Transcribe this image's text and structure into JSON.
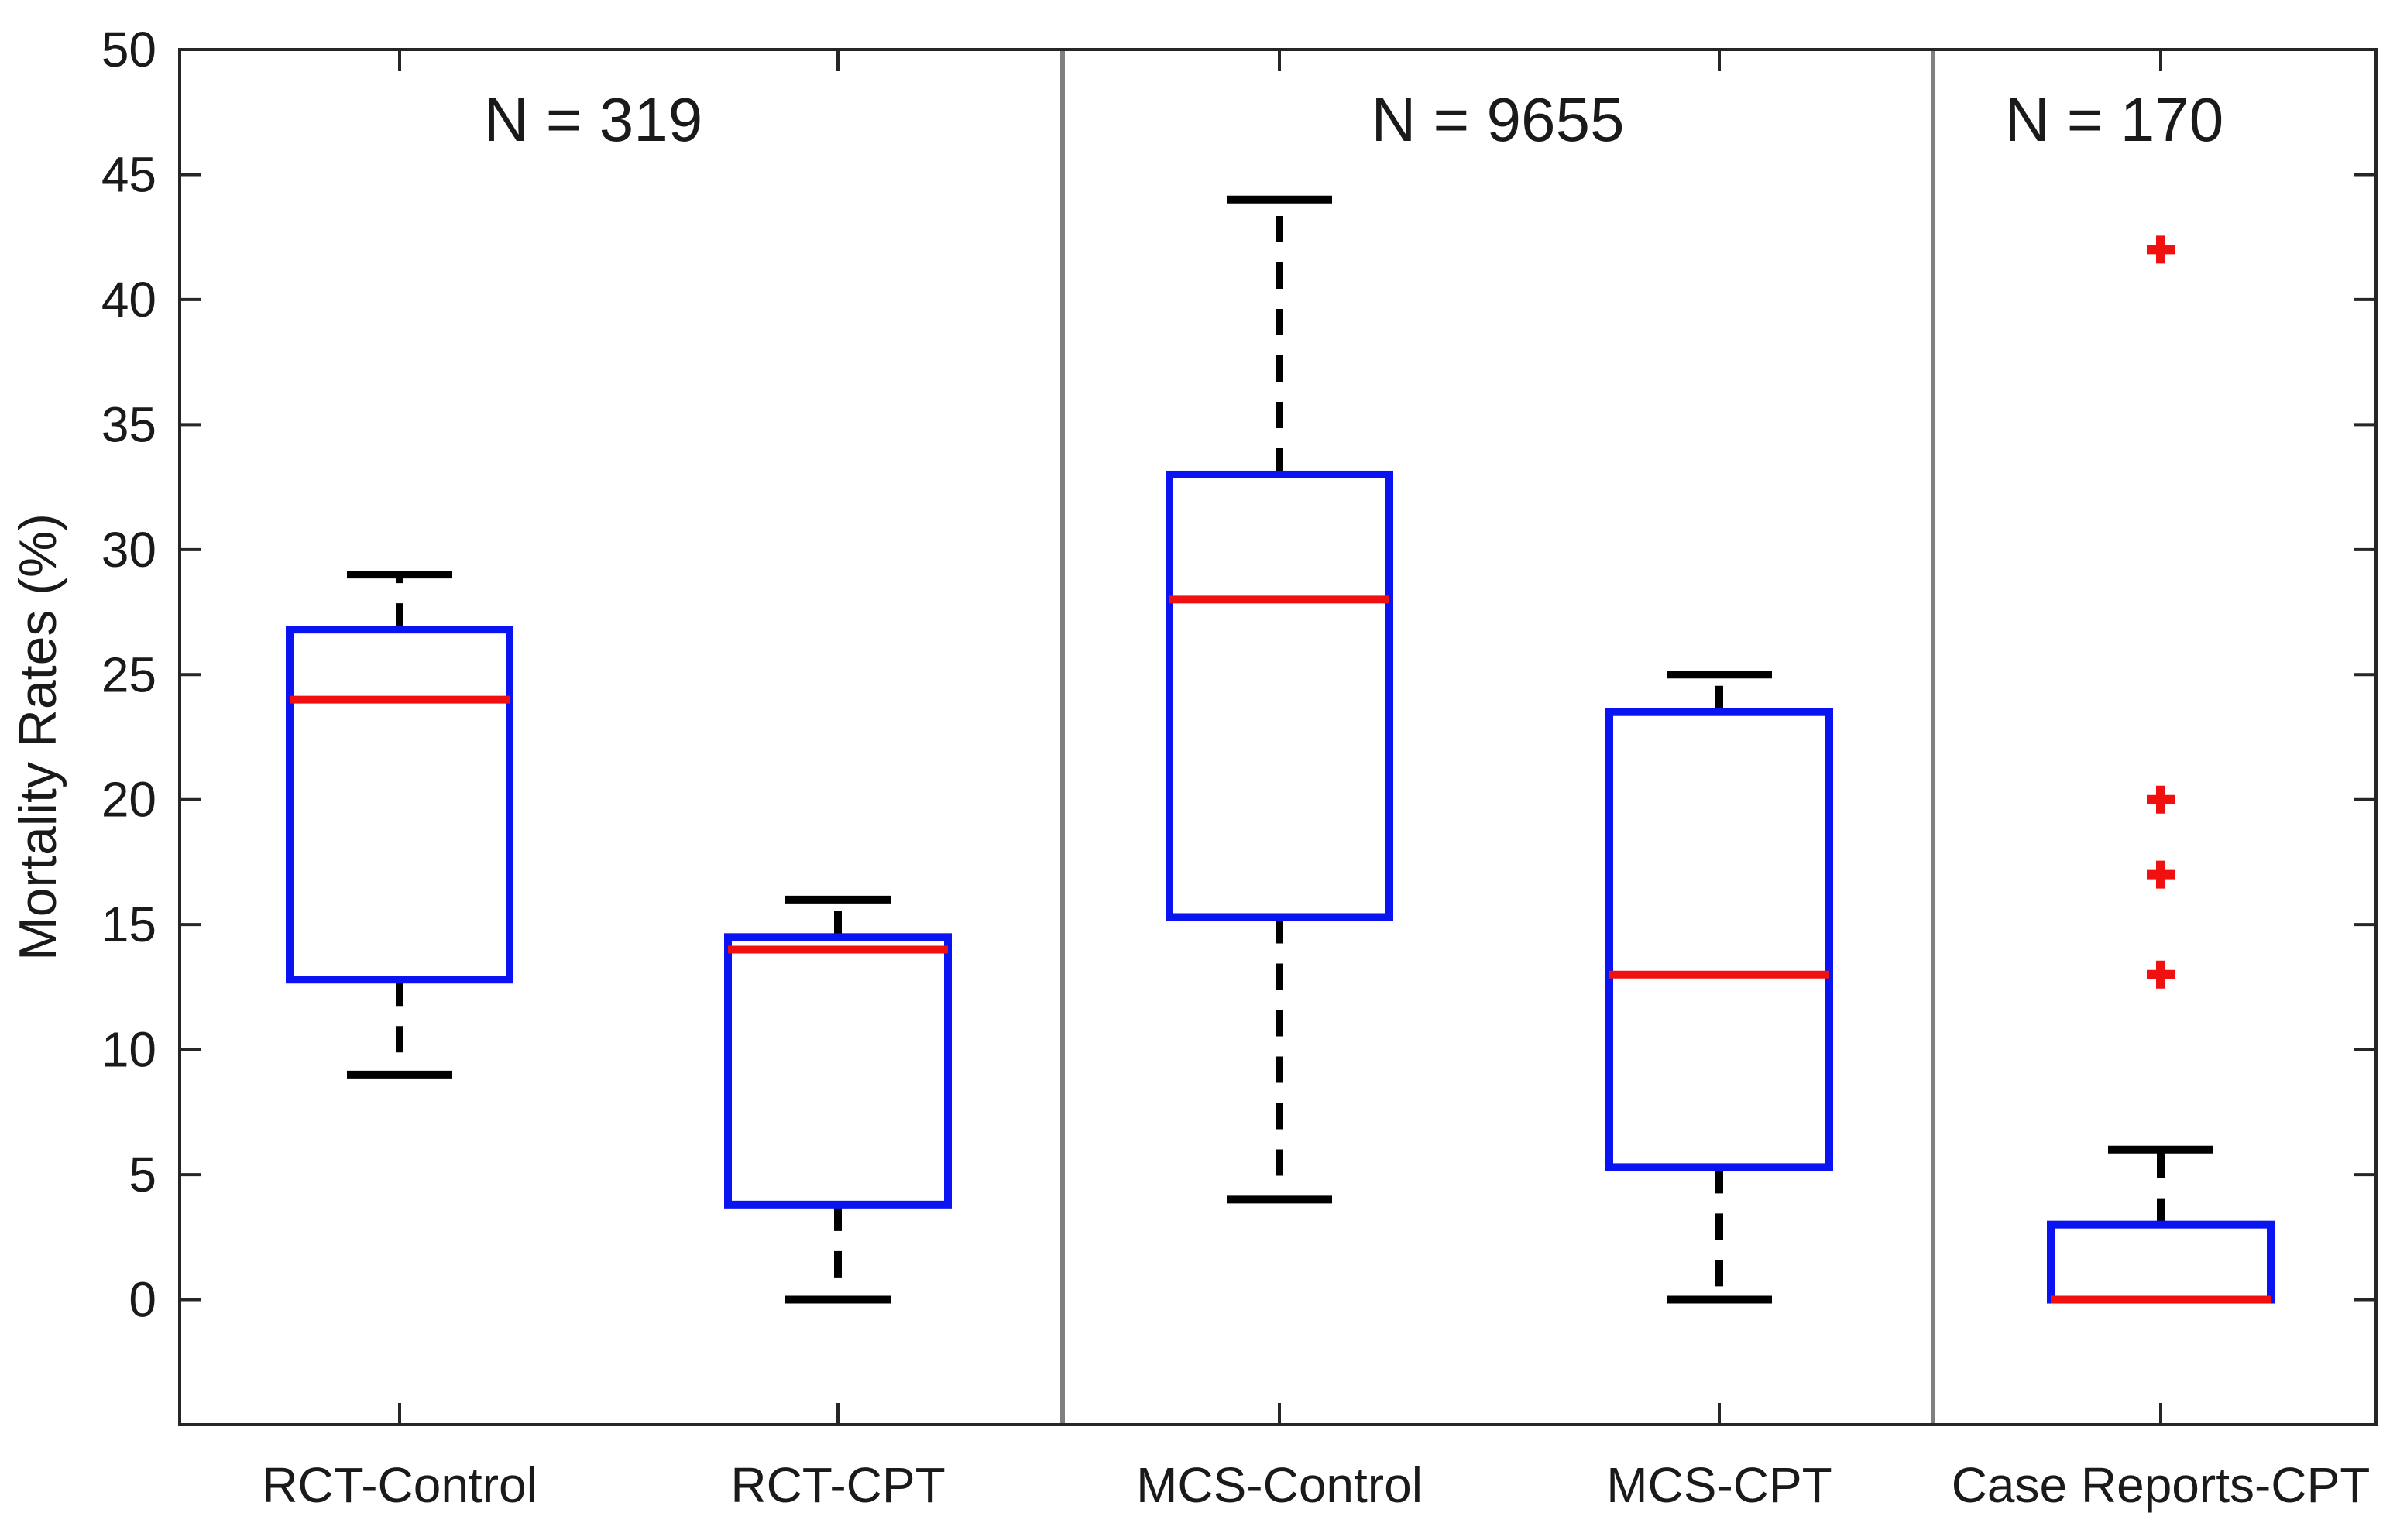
{
  "chart_data": {
    "type": "boxplot",
    "title": "",
    "xlabel": "",
    "ylabel": "Mortality Rates (%)",
    "ylim": [
      -5,
      50
    ],
    "yticks": [
      0,
      5,
      10,
      15,
      20,
      25,
      30,
      35,
      40,
      45,
      50
    ],
    "grid": false,
    "categories": [
      "RCT-Control",
      "RCT-CPT",
      "MCS-Control",
      "MCS-CPT",
      "Case Reports-CPT"
    ],
    "groups": [
      {
        "label": "N = 319",
        "categories": [
          "RCT-Control",
          "RCT-CPT"
        ]
      },
      {
        "label": "N = 9655",
        "categories": [
          "MCS-Control",
          "MCS-CPT"
        ]
      },
      {
        "label": "N = 170",
        "categories": [
          "Case Reports-CPT"
        ]
      }
    ],
    "boxes": [
      {
        "category": "RCT-Control",
        "whisker_low": 9,
        "q1": 12.8,
        "median": 24,
        "q3": 26.8,
        "whisker_high": 29,
        "outliers": []
      },
      {
        "category": "RCT-CPT",
        "whisker_low": 0,
        "q1": 3.8,
        "median": 14,
        "q3": 14.5,
        "whisker_high": 16,
        "outliers": []
      },
      {
        "category": "MCS-Control",
        "whisker_low": 4,
        "q1": 15.3,
        "median": 28,
        "q3": 33,
        "whisker_high": 44,
        "outliers": []
      },
      {
        "category": "MCS-CPT",
        "whisker_low": 0,
        "q1": 5.3,
        "median": 13,
        "q3": 23.5,
        "whisker_high": 25,
        "outliers": []
      },
      {
        "category": "Case Reports-CPT",
        "whisker_low": 0,
        "q1": 0,
        "median": 0,
        "q3": 3,
        "whisker_high": 6,
        "outliers": [
          13,
          17,
          20,
          42
        ]
      }
    ],
    "colors": {
      "box": "#0a14f0",
      "median": "#f01010",
      "whisker": "#000000",
      "outlier": "#f01010",
      "separator": "#808080",
      "axis": "#262626"
    }
  }
}
